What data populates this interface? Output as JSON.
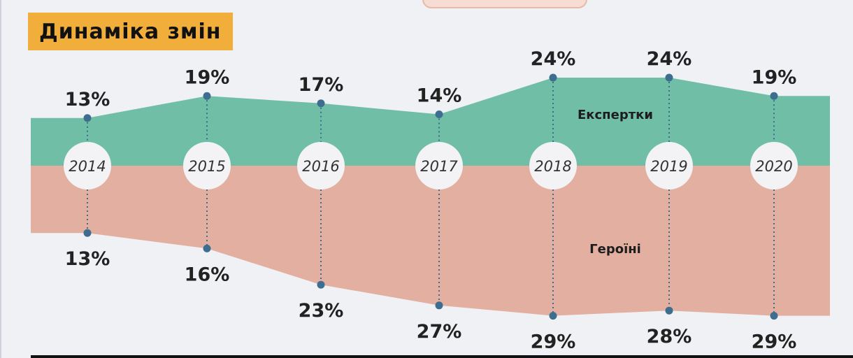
{
  "title": "Динаміка змін",
  "colors": {
    "experts": "#70bea5",
    "heroines": "#e2afa0",
    "marker": "#3d6e8f",
    "circle": "#f3f3f5",
    "text": "#222222"
  },
  "chart_data": {
    "type": "area",
    "categories": [
      "2014",
      "2015",
      "2016",
      "2017",
      "2018",
      "2019",
      "2020"
    ],
    "series": [
      {
        "name": "Експертки",
        "direction": "up",
        "values": [
          13,
          19,
          17,
          14,
          24,
          24,
          19
        ],
        "labels": [
          "13%",
          "19%",
          "17%",
          "14%",
          "24%",
          "24%",
          "19%"
        ]
      },
      {
        "name": "Героїні",
        "direction": "down",
        "values": [
          13,
          16,
          23,
          27,
          29,
          28,
          29
        ],
        "labels": [
          "13%",
          "16%",
          "23%",
          "27%",
          "29%",
          "28%",
          "29%"
        ]
      }
    ],
    "ylim": [
      0,
      30
    ],
    "xlabel": "",
    "ylabel": "",
    "legend": "inline"
  }
}
